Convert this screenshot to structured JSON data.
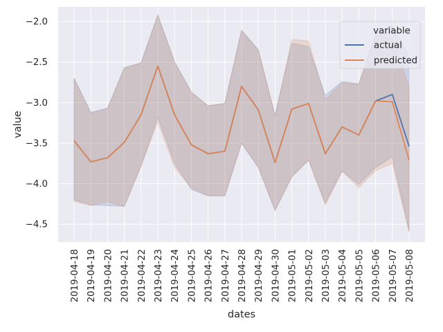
{
  "chart_data": {
    "type": "line",
    "xlabel": "dates",
    "ylabel": "value",
    "ylim": [
      -4.72,
      -1.82
    ],
    "yticks": [
      -2.0,
      -2.5,
      -3.0,
      -3.5,
      -4.0,
      -4.5
    ],
    "ytick_labels": [
      "−2.0",
      "−2.5",
      "−3.0",
      "−3.5",
      "−4.0",
      "−4.5"
    ],
    "grid": true,
    "legend": {
      "title": "variable",
      "placement": "top-right"
    },
    "x": [
      "2019-04-18",
      "2019-04-19",
      "2019-04-20",
      "2019-04-21",
      "2019-04-22",
      "2019-04-23",
      "2019-04-24",
      "2019-04-25",
      "2019-04-26",
      "2019-04-27",
      "2019-04-28",
      "2019-04-29",
      "2019-04-30",
      "2019-05-01",
      "2019-05-02",
      "2019-05-03",
      "2019-05-04",
      "2019-05-05",
      "2019-05-06",
      "2019-05-07",
      "2019-05-08"
    ],
    "series": [
      {
        "name": "actual",
        "color": "#4c72b0",
        "values": [
          -3.47,
          -3.73,
          -3.68,
          -3.49,
          -3.15,
          -2.55,
          -3.15,
          -3.52,
          -3.63,
          -3.6,
          -2.8,
          -3.09,
          -3.74,
          -3.08,
          -3.01,
          -3.63,
          -3.3,
          -3.4,
          -2.98,
          -2.9,
          -3.54
        ],
        "ci_upper": [
          -2.7,
          -3.12,
          -3.07,
          -2.57,
          -2.51,
          -1.92,
          -2.5,
          -2.87,
          -3.04,
          -3.01,
          -2.11,
          -2.35,
          -3.16,
          -2.27,
          -2.31,
          -2.91,
          -2.74,
          -2.77,
          -2.15,
          -2.05,
          -2.42
        ],
        "ci_lower": [
          -4.2,
          -4.26,
          -4.27,
          -4.28,
          -3.78,
          -3.18,
          -3.75,
          -4.07,
          -4.15,
          -4.15,
          -3.5,
          -3.8,
          -4.33,
          -3.91,
          -3.71,
          -4.24,
          -3.84,
          -4.01,
          -3.8,
          -3.67,
          -4.58
        ]
      },
      {
        "name": "predicted",
        "color": "#dd8452",
        "values": [
          -3.47,
          -3.73,
          -3.68,
          -3.49,
          -3.15,
          -2.55,
          -3.15,
          -3.52,
          -3.63,
          -3.6,
          -2.8,
          -3.09,
          -3.74,
          -3.08,
          -3.01,
          -3.63,
          -3.3,
          -3.4,
          -2.98,
          -2.99,
          -3.71
        ],
        "ci_upper": [
          -2.7,
          -3.13,
          -3.07,
          -2.57,
          -2.51,
          -1.92,
          -2.5,
          -2.87,
          -3.04,
          -3.01,
          -2.11,
          -2.35,
          -3.16,
          -2.22,
          -2.24,
          -2.96,
          -2.76,
          -2.77,
          -2.17,
          -2.21,
          -2.8
        ],
        "ci_lower": [
          -4.22,
          -4.27,
          -4.22,
          -4.28,
          -3.78,
          -3.24,
          -3.8,
          -4.05,
          -4.15,
          -4.15,
          -3.5,
          -3.8,
          -4.33,
          -3.92,
          -3.71,
          -4.26,
          -3.85,
          -4.05,
          -3.84,
          -3.75,
          -4.6
        ]
      }
    ]
  }
}
